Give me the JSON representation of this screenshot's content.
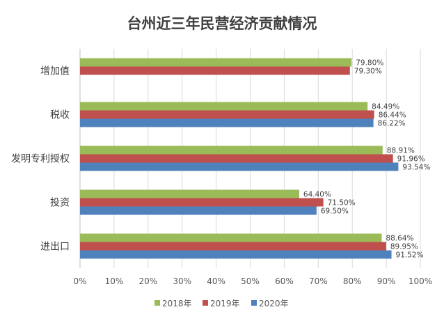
{
  "chart_data": {
    "type": "bar",
    "orientation": "horizontal",
    "title": "台州近三年民营经济贡献情况",
    "categories": [
      "增加值",
      "税收",
      "发明专利授权",
      "投资",
      "进出口"
    ],
    "series": [
      {
        "name": "2018年",
        "color": "#9BBB59",
        "values": [
          79.8,
          84.49,
          88.91,
          64.4,
          88.64
        ],
        "labels": [
          "79.80%",
          "84.49%",
          "88.91%",
          "64.40%",
          "88.64%"
        ]
      },
      {
        "name": "2019年",
        "color": "#C0504D",
        "values": [
          79.3,
          86.44,
          91.96,
          71.5,
          89.95
        ],
        "labels": [
          "79.30%",
          "86.44%",
          "91.96%",
          "71.50%",
          "89.95%"
        ]
      },
      {
        "name": "2020年",
        "color": "#4F81BD",
        "values": [
          null,
          86.22,
          93.54,
          69.5,
          91.52
        ],
        "labels": [
          null,
          "86.22%",
          "93.54%",
          "69.50%",
          "91.52%"
        ]
      }
    ],
    "xlim": [
      0,
      100
    ],
    "xticks": [
      "0%",
      "10%",
      "20%",
      "30%",
      "40%",
      "50%",
      "60%",
      "70%",
      "80%",
      "90%",
      "100%"
    ],
    "grid": true,
    "legend": "bottom"
  }
}
